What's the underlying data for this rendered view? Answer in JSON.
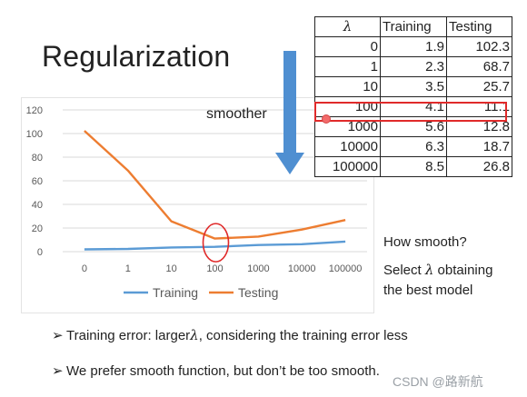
{
  "slide": {
    "title": "Regularization",
    "smoother_label": "smoother",
    "note_1": "How smooth?",
    "note_2_prefix": "Select ",
    "note_2_lambda": "λ",
    "note_2_suffix": " obtaining",
    "note_3": "the best model",
    "bullet_1_prefix": "Training error: larger",
    "bullet_1_lambda": "λ",
    "bullet_1_suffix": ", considering the training error less",
    "bullet_2": "We prefer smooth function, but don’t be too smooth.",
    "watermark": "CSDN @路新航"
  },
  "table": {
    "headers": [
      "λ",
      "Training",
      "Testing"
    ],
    "rows": [
      [
        "0",
        "1.9",
        "102.3"
      ],
      [
        "1",
        "2.3",
        "68.7"
      ],
      [
        "10",
        "3.5",
        "25.7"
      ],
      [
        "100",
        "4.1",
        "11.1"
      ],
      [
        "1000",
        "5.6",
        "12.8"
      ],
      [
        "10000",
        "6.3",
        "18.7"
      ],
      [
        "100000",
        "8.5",
        "26.8"
      ]
    ],
    "highlighted_row": 3,
    "highlight_color": "#e02a2a"
  },
  "chart_data": {
    "type": "line",
    "categories": [
      "0",
      "1",
      "10",
      "100",
      "1000",
      "10000",
      "100000"
    ],
    "series": [
      {
        "name": "Training",
        "values": [
          1.9,
          2.3,
          3.5,
          4.1,
          5.6,
          6.3,
          8.5
        ],
        "color": "#5b9bd5"
      },
      {
        "name": "Testing",
        "values": [
          102.3,
          68.7,
          25.7,
          11.1,
          12.8,
          18.7,
          26.8
        ],
        "color": "#ed7d31"
      }
    ],
    "yticks": [
      0,
      20,
      40,
      60,
      80,
      100,
      120
    ],
    "ylim": [
      0,
      120
    ],
    "grid": true,
    "legend": "bottom",
    "highlight_category": "100",
    "highlight_color": "#e02a2a"
  },
  "colors": {
    "arrow": "#4f8fd1",
    "grid": "#d9d9d9"
  }
}
